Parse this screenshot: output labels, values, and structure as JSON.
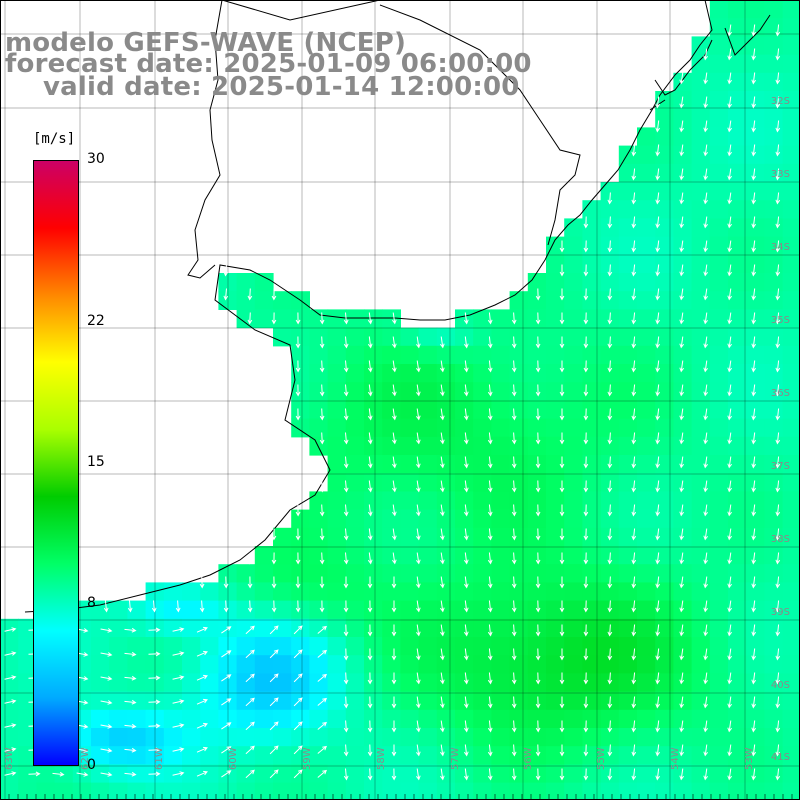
{
  "title": {
    "line1": "modelo GEFS-WAVE (NCEP)",
    "line2": "forecast date: 2025-01-09 06:00:00",
    "line3": "valid date: 2025-01-14 12:00:00"
  },
  "colorbar": {
    "unit": "[m/s]",
    "ticks": [
      "30",
      "22",
      "15",
      "8",
      "0"
    ],
    "tick_values": [
      30,
      22,
      15,
      8,
      0
    ],
    "range": [
      0,
      30
    ],
    "colors": [
      "#0000ff",
      "#00aaff",
      "#00ffff",
      "#00ff66",
      "#00cc00",
      "#aaff00",
      "#ffff00",
      "#ff8800",
      "#ff0000",
      "#cc0066"
    ]
  },
  "map": {
    "lat_labels": [
      "32S",
      "33S",
      "34S",
      "35S",
      "36S",
      "37S",
      "38S",
      "39S",
      "40S",
      "41S"
    ],
    "lon_labels": [
      "63W",
      "62W",
      "61W",
      "60W",
      "59W",
      "58W",
      "57W",
      "56W",
      "55W",
      "54W",
      "53W"
    ],
    "colors": {
      "land": "#ffffff",
      "coast": "#000000",
      "grid": "#000000",
      "arrow": "#ffffff",
      "label": "#8a8a8a"
    }
  }
}
